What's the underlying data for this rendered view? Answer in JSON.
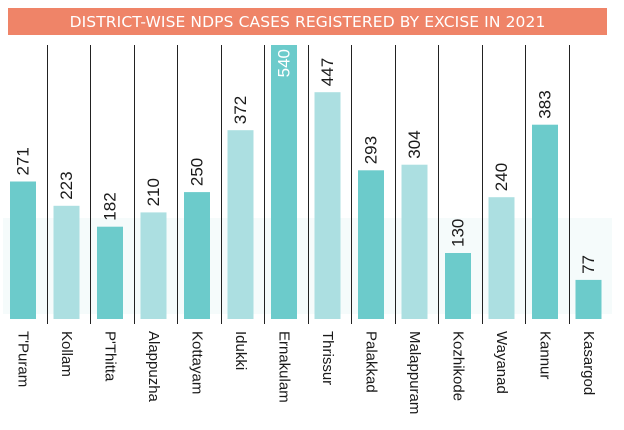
{
  "chart_data": {
    "type": "bar",
    "title": "DISTRICT-WISE NDPS CASES REGISTERED BY EXCISE IN 2021",
    "categories": [
      "T'Puram",
      "Kollam",
      "P'Thitta",
      "Alappuzha",
      "Kottayam",
      "Idukki",
      "Ernakulam",
      "Thrissur",
      "Palakkad",
      "Malappuram",
      "Kozhikode",
      "Wayanad",
      "Kannur",
      "Kasargod"
    ],
    "values": [
      271,
      223,
      182,
      210,
      250,
      372,
      540,
      447,
      293,
      304,
      130,
      240,
      383,
      77
    ],
    "ylim": [
      0,
      540
    ],
    "grid": false,
    "legend": "none",
    "colors": {
      "title_bg": "#ef8468",
      "dark_bar": "#6ccbcb",
      "light_bar": "#acdfe1",
      "divider": "#222222",
      "label": "#1a1a1a"
    },
    "bar_shades": [
      "dark",
      "light",
      "dark",
      "light",
      "dark",
      "light",
      "dark",
      "light",
      "dark",
      "light",
      "dark",
      "light",
      "dark",
      "dark"
    ]
  }
}
